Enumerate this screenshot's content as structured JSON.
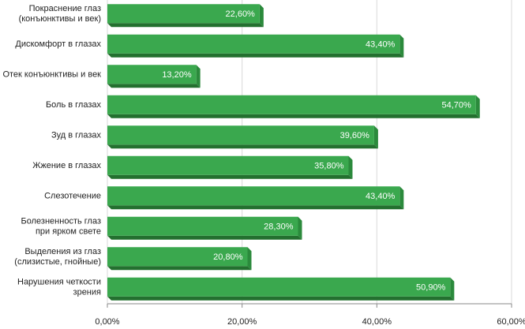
{
  "chart_data": {
    "type": "bar",
    "orientation": "horizontal",
    "categories": [
      [
        "Покраснение глаз",
        "(конъюнктивы и век)"
      ],
      [
        "Дискомфорт в глазах"
      ],
      [
        "Отек конъюнктивы и век"
      ],
      [
        "Боль в глазах"
      ],
      [
        "Зуд в глазах"
      ],
      [
        "Жжение в глазах"
      ],
      [
        "Слезотечение"
      ],
      [
        "Болезненность глаз",
        "при ярком свете"
      ],
      [
        "Выделения из глаз",
        "(слизистые, гнойные)"
      ],
      [
        "Нарушения четкости",
        "зрения"
      ]
    ],
    "values": [
      22.6,
      43.4,
      13.2,
      54.7,
      39.6,
      35.8,
      43.4,
      28.3,
      20.8,
      50.9
    ],
    "value_labels": [
      "22,60%",
      "43,40%",
      "13,20%",
      "54,70%",
      "39,60%",
      "35,80%",
      "43,40%",
      "28,30%",
      "20,80%",
      "50,90%"
    ],
    "color": "#3aa84e",
    "xlim": [
      0,
      60
    ],
    "xticks": [
      {
        "value": 0,
        "label": "0,00%"
      },
      {
        "value": 20,
        "label": "20,00%"
      },
      {
        "value": 40,
        "label": "40,00%"
      },
      {
        "value": 60,
        "label": "60,00%"
      }
    ],
    "grid": true
  }
}
